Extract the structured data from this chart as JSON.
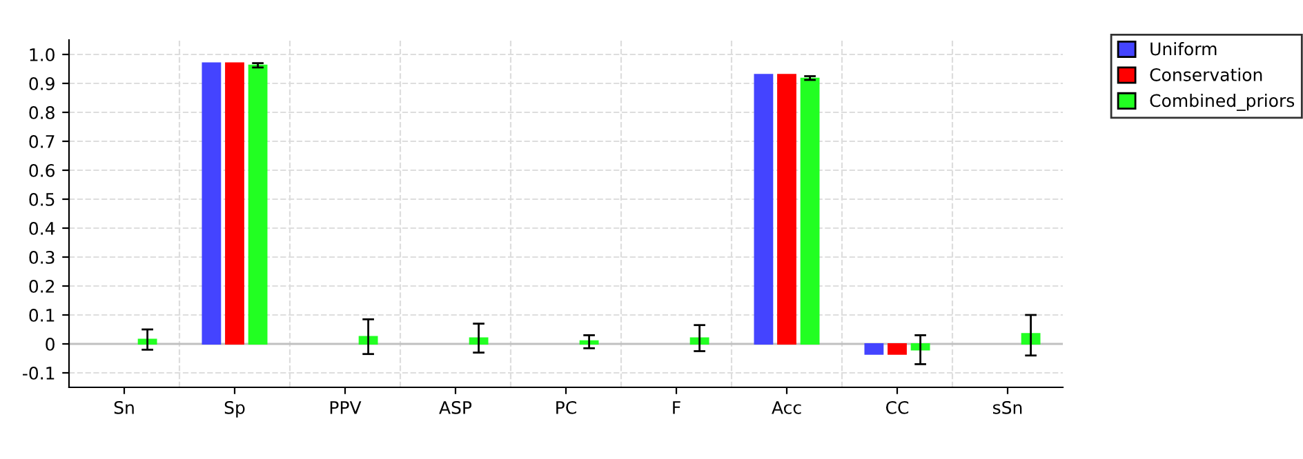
{
  "chart_data": {
    "type": "bar",
    "categories": [
      "Sn",
      "Sp",
      "PPV",
      "ASP",
      "PC",
      "F",
      "Acc",
      "CC",
      "sSn"
    ],
    "series": [
      {
        "name": "Uniform",
        "color": "#4444ff",
        "values": [
          null,
          0.97,
          null,
          null,
          null,
          null,
          0.93,
          -0.035,
          null
        ]
      },
      {
        "name": "Conservation",
        "color": "#ff0000",
        "values": [
          null,
          0.97,
          null,
          null,
          null,
          null,
          0.93,
          -0.035,
          null
        ]
      },
      {
        "name": "Combined_priors",
        "color": "#22ff22",
        "values": [
          0.015,
          0.962,
          0.025,
          0.02,
          0.01,
          0.02,
          0.917,
          -0.02,
          0.035
        ],
        "errors": [
          [
            -0.02,
            0.05
          ],
          [
            0.955,
            0.97
          ],
          [
            -0.035,
            0.085
          ],
          [
            -0.03,
            0.07
          ],
          [
            -0.015,
            0.03
          ],
          [
            -0.025,
            0.065
          ],
          [
            0.912,
            0.925
          ],
          [
            -0.07,
            0.03
          ],
          [
            -0.04,
            0.1
          ]
        ]
      }
    ],
    "ylim": [
      -0.15,
      1.05
    ],
    "yticks": [
      -0.1,
      0,
      0.1,
      0.2,
      0.3,
      0.4,
      0.5,
      0.6,
      0.7,
      0.8,
      0.9,
      {
        "value": 1,
        "label": "1.0"
      }
    ],
    "ref_lines": [
      {
        "axis": "y",
        "value": 0,
        "color": "#c0c0c0"
      }
    ],
    "grid": true,
    "legend": "top right"
  }
}
